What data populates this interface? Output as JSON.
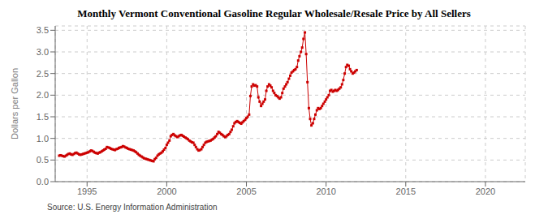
{
  "chart_data": {
    "type": "line",
    "title": "Monthly Vermont Conventional Gasoline Regular Wholesale/Resale Price by All Sellers",
    "y_label": "Dollars per Gallon",
    "annotations": [
      "Source: U.S. Energy Information Administration"
    ],
    "color": "#cc0000",
    "marker": "square",
    "line_style": "solid",
    "grid": true,
    "xlim": [
      1993.0,
      2022.5
    ],
    "ylim": [
      0.0,
      3.6
    ],
    "xticks": [
      1995,
      2000,
      2005,
      2010,
      2015,
      2020
    ],
    "yticks": [
      {
        "value": 0.0,
        "label": "0.0"
      },
      0.5,
      {
        "value": 1.0,
        "label": "1.0"
      },
      1.5,
      {
        "value": 2.0,
        "label": "2.0"
      },
      2.5,
      {
        "value": 3.0,
        "label": "3.0"
      },
      3.5
    ],
    "x": [
      1993.25,
      1993.33,
      1993.42,
      1993.5,
      1993.58,
      1993.67,
      1993.75,
      1993.83,
      1993.92,
      1994.0,
      1994.08,
      1994.17,
      1994.25,
      1994.33,
      1994.42,
      1994.5,
      1994.58,
      1994.67,
      1994.75,
      1994.83,
      1994.92,
      1995.0,
      1995.08,
      1995.17,
      1995.25,
      1995.33,
      1995.42,
      1995.5,
      1995.58,
      1995.67,
      1995.75,
      1995.83,
      1995.92,
      1996.0,
      1996.08,
      1996.17,
      1996.25,
      1996.33,
      1996.42,
      1996.5,
      1996.58,
      1996.67,
      1996.75,
      1996.83,
      1996.92,
      1997.0,
      1997.08,
      1997.17,
      1997.25,
      1997.33,
      1997.42,
      1997.5,
      1997.58,
      1997.67,
      1997.75,
      1997.83,
      1997.92,
      1998.0,
      1998.08,
      1998.17,
      1998.25,
      1998.33,
      1998.42,
      1998.5,
      1998.58,
      1998.67,
      1998.75,
      1998.83,
      1998.92,
      1999.0,
      1999.08,
      1999.17,
      1999.25,
      1999.33,
      1999.42,
      1999.5,
      1999.58,
      1999.67,
      1999.75,
      1999.83,
      1999.92,
      2000.0,
      2000.08,
      2000.17,
      2000.25,
      2000.33,
      2000.42,
      2000.5,
      2000.58,
      2000.67,
      2000.75,
      2000.83,
      2000.92,
      2001.0,
      2001.08,
      2001.17,
      2001.25,
      2001.33,
      2001.42,
      2001.5,
      2001.58,
      2001.67,
      2001.75,
      2001.83,
      2001.92,
      2002.0,
      2002.08,
      2002.17,
      2002.25,
      2002.33,
      2002.42,
      2002.5,
      2002.58,
      2002.67,
      2002.75,
      2002.83,
      2002.92,
      2003.0,
      2003.08,
      2003.17,
      2003.25,
      2003.33,
      2003.42,
      2003.5,
      2003.58,
      2003.67,
      2003.75,
      2003.83,
      2003.92,
      2004.0,
      2004.08,
      2004.17,
      2004.25,
      2004.33,
      2004.42,
      2004.5,
      2004.58,
      2004.67,
      2004.75,
      2004.83,
      2004.92,
      2005.0,
      2005.08,
      2005.17,
      2005.25,
      2005.33,
      2005.42,
      2005.5,
      2005.58,
      2005.67,
      2005.75,
      2005.83,
      2005.92,
      2006.0,
      2006.08,
      2006.17,
      2006.25,
      2006.33,
      2006.42,
      2006.5,
      2006.58,
      2006.67,
      2006.75,
      2006.83,
      2006.92,
      2007.0,
      2007.08,
      2007.17,
      2007.25,
      2007.33,
      2007.42,
      2007.5,
      2007.58,
      2007.67,
      2007.75,
      2007.83,
      2007.92,
      2008.0,
      2008.08,
      2008.17,
      2008.25,
      2008.33,
      2008.42,
      2008.5,
      2008.58,
      2008.67,
      2008.75,
      2008.83,
      2008.92,
      2009.0,
      2009.08,
      2009.17,
      2009.25,
      2009.33,
      2009.42,
      2009.5,
      2009.58,
      2009.67,
      2009.75,
      2009.83,
      2009.92,
      2010.0,
      2010.08,
      2010.17,
      2010.25,
      2010.33,
      2010.42,
      2010.5,
      2010.58,
      2010.67,
      2010.75,
      2010.83,
      2010.92,
      2011.0,
      2011.08,
      2011.17,
      2011.25,
      2011.33,
      2011.42,
      2011.5,
      2011.58,
      2011.67,
      2011.75,
      2011.83,
      2011.92
    ],
    "values": [
      0.6,
      0.61,
      0.6,
      0.59,
      0.58,
      0.6,
      0.62,
      0.64,
      0.65,
      0.63,
      0.62,
      0.64,
      0.66,
      0.67,
      0.65,
      0.63,
      0.62,
      0.63,
      0.64,
      0.65,
      0.66,
      0.67,
      0.68,
      0.7,
      0.72,
      0.71,
      0.69,
      0.67,
      0.66,
      0.65,
      0.67,
      0.68,
      0.7,
      0.72,
      0.74,
      0.76,
      0.8,
      0.79,
      0.78,
      0.76,
      0.75,
      0.74,
      0.73,
      0.75,
      0.76,
      0.78,
      0.79,
      0.8,
      0.82,
      0.81,
      0.79,
      0.78,
      0.76,
      0.75,
      0.74,
      0.73,
      0.72,
      0.7,
      0.68,
      0.65,
      0.62,
      0.6,
      0.58,
      0.56,
      0.54,
      0.53,
      0.52,
      0.51,
      0.5,
      0.49,
      0.48,
      0.47,
      0.52,
      0.55,
      0.6,
      0.63,
      0.65,
      0.67,
      0.7,
      0.74,
      0.78,
      0.85,
      0.9,
      0.95,
      1.05,
      1.08,
      1.1,
      1.07,
      1.05,
      1.03,
      1.05,
      1.07,
      1.08,
      1.06,
      1.04,
      1.02,
      1.0,
      0.98,
      0.95,
      0.93,
      0.91,
      0.9,
      0.85,
      0.8,
      0.75,
      0.72,
      0.73,
      0.75,
      0.8,
      0.85,
      0.9,
      0.92,
      0.93,
      0.94,
      0.95,
      0.97,
      0.99,
      1.02,
      1.05,
      1.1,
      1.15,
      1.13,
      1.1,
      1.08,
      1.05,
      1.03,
      1.05,
      1.08,
      1.1,
      1.15,
      1.2,
      1.28,
      1.35,
      1.38,
      1.4,
      1.38,
      1.36,
      1.34,
      1.37,
      1.4,
      1.43,
      1.47,
      1.5,
      1.55,
      1.98,
      2.2,
      2.25,
      2.22,
      2.23,
      2.2,
      1.95,
      1.85,
      1.75,
      1.8,
      1.85,
      1.9,
      2.1,
      2.2,
      2.25,
      2.22,
      2.18,
      2.1,
      2.05,
      2.0,
      1.98,
      1.95,
      1.92,
      1.95,
      2.05,
      2.15,
      2.2,
      2.25,
      2.3,
      2.38,
      2.45,
      2.52,
      2.55,
      2.58,
      2.6,
      2.65,
      2.8,
      2.9,
      3.0,
      3.1,
      3.3,
      3.45,
      2.95,
      2.3,
      1.7,
      1.45,
      1.3,
      1.35,
      1.45,
      1.55,
      1.65,
      1.7,
      1.68,
      1.7,
      1.75,
      1.8,
      1.85,
      1.9,
      1.95,
      2.0,
      2.1,
      2.12,
      2.08,
      2.1,
      2.12,
      2.1,
      2.12,
      2.15,
      2.18,
      2.25,
      2.35,
      2.5,
      2.65,
      2.7,
      2.68,
      2.6,
      2.55,
      2.5,
      2.52,
      2.55,
      2.58
    ]
  }
}
